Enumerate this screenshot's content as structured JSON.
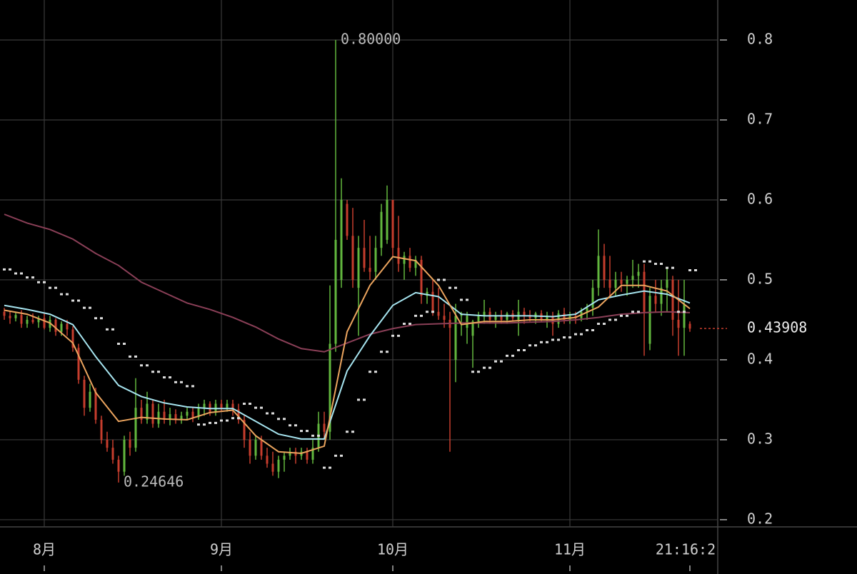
{
  "chart_data": {
    "type": "candlestick",
    "xlim": [
      -7.75,
      117.875
    ],
    "ylim": [
      0.191,
      0.85
    ],
    "yticks": [
      0.2,
      0.3,
      0.4,
      0.5,
      0.6,
      0.7,
      0.8
    ],
    "xticks": [
      {
        "value": 0,
        "label": "8月"
      },
      {
        "value": 31,
        "label": "9月"
      },
      {
        "value": 61,
        "label": "10月"
      },
      {
        "value": 92,
        "label": "11月"
      }
    ],
    "grid": true,
    "up_color": "#62b73e",
    "down_color": "#c63d2d",
    "candles": {
      "x": [
        -7,
        -6,
        -5,
        -4,
        -3,
        -2,
        -1,
        0,
        1,
        2,
        3,
        4,
        5,
        6,
        7,
        8,
        9,
        10,
        11,
        12,
        13,
        14,
        15,
        16,
        17,
        18,
        19,
        20,
        21,
        22,
        23,
        24,
        25,
        26,
        27,
        28,
        29,
        30,
        31,
        32,
        33,
        34,
        35,
        36,
        37,
        38,
        39,
        40,
        41,
        42,
        43,
        44,
        45,
        46,
        47,
        48,
        49,
        50,
        51,
        52,
        53,
        54,
        55,
        56,
        57,
        58,
        59,
        60,
        61,
        62,
        63,
        64,
        65,
        66,
        67,
        68,
        69,
        70,
        71,
        72,
        73,
        74,
        75,
        76,
        77,
        78,
        79,
        80,
        81,
        82,
        83,
        84,
        85,
        86,
        87,
        88,
        89,
        90,
        91,
        92,
        93,
        94,
        95,
        96,
        97,
        98,
        99,
        100,
        101,
        102,
        103,
        104,
        105,
        106,
        107,
        108,
        109,
        110,
        111,
        112,
        113
      ],
      "open": [
        0.46,
        0.455,
        0.452,
        0.456,
        0.445,
        0.45,
        0.447,
        0.452,
        0.44,
        0.45,
        0.435,
        0.445,
        0.438,
        0.415,
        0.375,
        0.34,
        0.36,
        0.325,
        0.3,
        0.29,
        0.275,
        0.26,
        0.3,
        0.29,
        0.34,
        0.325,
        0.345,
        0.32,
        0.335,
        0.325,
        0.332,
        0.325,
        0.33,
        0.335,
        0.328,
        0.34,
        0.345,
        0.335,
        0.345,
        0.34,
        0.345,
        0.338,
        0.325,
        0.3,
        0.28,
        0.3,
        0.28,
        0.27,
        0.26,
        0.275,
        0.28,
        0.285,
        0.28,
        0.285,
        0.275,
        0.29,
        0.32,
        0.31,
        0.42,
        0.5,
        0.595,
        0.555,
        0.49,
        0.54,
        0.515,
        0.51,
        0.54,
        0.55,
        0.6,
        0.54,
        0.52,
        0.53,
        0.515,
        0.525,
        0.48,
        0.485,
        0.46,
        0.455,
        0.45,
        0.4,
        0.455,
        0.44,
        0.43,
        0.448,
        0.455,
        0.46,
        0.45,
        0.455,
        0.45,
        0.458,
        0.45,
        0.46,
        0.455,
        0.452,
        0.458,
        0.45,
        0.455,
        0.445,
        0.458,
        0.45,
        0.455,
        0.452,
        0.46,
        0.465,
        0.49,
        0.53,
        0.5,
        0.49,
        0.5,
        0.495,
        0.5,
        0.505,
        0.51,
        0.42,
        0.48,
        0.47,
        0.49,
        0.5,
        0.45,
        0.44,
        0.445
      ],
      "high": [
        0.465,
        0.46,
        0.46,
        0.462,
        0.455,
        0.458,
        0.455,
        0.458,
        0.455,
        0.452,
        0.448,
        0.45,
        0.442,
        0.42,
        0.38,
        0.37,
        0.365,
        0.33,
        0.31,
        0.3,
        0.28,
        0.305,
        0.31,
        0.377,
        0.35,
        0.36,
        0.35,
        0.345,
        0.35,
        0.34,
        0.338,
        0.335,
        0.34,
        0.34,
        0.345,
        0.35,
        0.348,
        0.35,
        0.35,
        0.35,
        0.35,
        0.345,
        0.33,
        0.31,
        0.305,
        0.305,
        0.29,
        0.285,
        0.28,
        0.285,
        0.29,
        0.29,
        0.29,
        0.29,
        0.3,
        0.335,
        0.335,
        0.493,
        0.8,
        0.627,
        0.6,
        0.59,
        0.555,
        0.575,
        0.555,
        0.555,
        0.595,
        0.618,
        0.6,
        0.58,
        0.535,
        0.54,
        0.53,
        0.53,
        0.49,
        0.5,
        0.49,
        0.47,
        0.46,
        0.47,
        0.46,
        0.46,
        0.45,
        0.46,
        0.475,
        0.465,
        0.46,
        0.462,
        0.46,
        0.462,
        0.475,
        0.465,
        0.462,
        0.46,
        0.462,
        0.46,
        0.46,
        0.462,
        0.465,
        0.46,
        0.46,
        0.465,
        0.47,
        0.5,
        0.563,
        0.545,
        0.53,
        0.51,
        0.51,
        0.505,
        0.525,
        0.52,
        0.52,
        0.49,
        0.5,
        0.5,
        0.515,
        0.505,
        0.5,
        0.5,
        0.448
      ],
      "low": [
        0.45,
        0.445,
        0.448,
        0.44,
        0.44,
        0.445,
        0.44,
        0.438,
        0.435,
        0.43,
        0.43,
        0.43,
        0.41,
        0.37,
        0.33,
        0.335,
        0.32,
        0.295,
        0.285,
        0.27,
        0.24646,
        0.255,
        0.28,
        0.285,
        0.32,
        0.32,
        0.315,
        0.315,
        0.32,
        0.318,
        0.32,
        0.32,
        0.325,
        0.322,
        0.325,
        0.33,
        0.33,
        0.33,
        0.335,
        0.335,
        0.33,
        0.32,
        0.29,
        0.27,
        0.275,
        0.275,
        0.265,
        0.255,
        0.252,
        0.26,
        0.275,
        0.27,
        0.275,
        0.27,
        0.27,
        0.285,
        0.3,
        0.3,
        0.41,
        0.49,
        0.55,
        0.49,
        0.43,
        0.51,
        0.5,
        0.5,
        0.53,
        0.545,
        0.53,
        0.51,
        0.5,
        0.51,
        0.505,
        0.47,
        0.47,
        0.455,
        0.45,
        0.44,
        0.285,
        0.372,
        0.43,
        0.42,
        0.39,
        0.44,
        0.445,
        0.445,
        0.44,
        0.445,
        0.445,
        0.448,
        0.43,
        0.445,
        0.448,
        0.445,
        0.448,
        0.44,
        0.43,
        0.44,
        0.445,
        0.445,
        0.445,
        0.448,
        0.45,
        0.455,
        0.48,
        0.49,
        0.48,
        0.48,
        0.485,
        0.48,
        0.49,
        0.49,
        0.405,
        0.412,
        0.46,
        0.455,
        0.46,
        0.43,
        0.405,
        0.405,
        0.435
      ],
      "close": [
        0.455,
        0.452,
        0.456,
        0.445,
        0.45,
        0.447,
        0.452,
        0.44,
        0.45,
        0.435,
        0.445,
        0.438,
        0.415,
        0.375,
        0.34,
        0.36,
        0.325,
        0.3,
        0.29,
        0.275,
        0.26,
        0.3,
        0.29,
        0.34,
        0.325,
        0.345,
        0.32,
        0.335,
        0.325,
        0.332,
        0.325,
        0.33,
        0.335,
        0.328,
        0.34,
        0.345,
        0.335,
        0.345,
        0.34,
        0.345,
        0.338,
        0.325,
        0.3,
        0.28,
        0.3,
        0.28,
        0.27,
        0.26,
        0.275,
        0.28,
        0.285,
        0.28,
        0.285,
        0.275,
        0.29,
        0.32,
        0.31,
        0.42,
        0.55,
        0.6,
        0.555,
        0.5,
        0.54,
        0.515,
        0.51,
        0.54,
        0.585,
        0.6,
        0.54,
        0.52,
        0.53,
        0.515,
        0.525,
        0.48,
        0.485,
        0.46,
        0.455,
        0.45,
        0.44,
        0.455,
        0.458,
        0.455,
        0.448,
        0.455,
        0.46,
        0.45,
        0.455,
        0.45,
        0.458,
        0.452,
        0.46,
        0.455,
        0.452,
        0.458,
        0.45,
        0.455,
        0.445,
        0.458,
        0.45,
        0.455,
        0.452,
        0.46,
        0.465,
        0.49,
        0.53,
        0.5,
        0.49,
        0.5,
        0.495,
        0.5,
        0.505,
        0.51,
        0.46,
        0.48,
        0.47,
        0.49,
        0.5,
        0.45,
        0.44,
        0.47,
        0.439
      ]
    },
    "lines": [
      {
        "color": "#8a3f57",
        "x": [
          -7,
          -3,
          1,
          5,
          9,
          13,
          17,
          21,
          25,
          29,
          33,
          37,
          41,
          45,
          49,
          53,
          57,
          61,
          65,
          69,
          73,
          77,
          81,
          85,
          89,
          93,
          97,
          101,
          105,
          109,
          113
        ],
        "values": [
          0.582,
          0.571,
          0.563,
          0.551,
          0.533,
          0.518,
          0.497,
          0.484,
          0.471,
          0.463,
          0.453,
          0.441,
          0.426,
          0.414,
          0.41,
          0.421,
          0.432,
          0.439,
          0.444,
          0.445,
          0.446,
          0.446,
          0.446,
          0.447,
          0.448,
          0.45,
          0.453,
          0.457,
          0.459,
          0.46,
          0.459
        ]
      },
      {
        "color": "#a6e4ef",
        "x": [
          -7,
          -3,
          1,
          5,
          9,
          13,
          17,
          21,
          25,
          29,
          33,
          37,
          41,
          45,
          49,
          53,
          57,
          61,
          65,
          69,
          73,
          77,
          81,
          85,
          89,
          93,
          97,
          101,
          105,
          109,
          113
        ],
        "values": [
          0.468,
          0.463,
          0.457,
          0.444,
          0.404,
          0.368,
          0.354,
          0.346,
          0.341,
          0.339,
          0.339,
          0.323,
          0.307,
          0.301,
          0.301,
          0.386,
          0.43,
          0.468,
          0.484,
          0.479,
          0.457,
          0.455,
          0.455,
          0.455,
          0.454,
          0.457,
          0.475,
          0.481,
          0.486,
          0.482,
          0.471
        ]
      },
      {
        "color": "#eba45e",
        "x": [
          -7,
          -3,
          1,
          5,
          9,
          13,
          17,
          21,
          25,
          29,
          33,
          37,
          41,
          45,
          49,
          53,
          57,
          61,
          65,
          69,
          73,
          77,
          81,
          85,
          89,
          93,
          97,
          101,
          105,
          109,
          113
        ],
        "values": [
          0.462,
          0.457,
          0.446,
          0.421,
          0.359,
          0.323,
          0.328,
          0.326,
          0.325,
          0.334,
          0.337,
          0.305,
          0.285,
          0.283,
          0.292,
          0.435,
          0.493,
          0.529,
          0.524,
          0.493,
          0.444,
          0.448,
          0.448,
          0.45,
          0.45,
          0.453,
          0.466,
          0.493,
          0.493,
          0.486,
          0.464
        ]
      }
    ],
    "sar": {
      "color": "#dddddd",
      "x": [
        -7,
        -5,
        -3,
        -1,
        1,
        3,
        5,
        7,
        9,
        11,
        13,
        15,
        17,
        19,
        21,
        23,
        25,
        27,
        29,
        31,
        33,
        35,
        37,
        39,
        41,
        43,
        45,
        47,
        49,
        51,
        53,
        55,
        57,
        59,
        61,
        63,
        65,
        67,
        69,
        71,
        73,
        75,
        77,
        79,
        81,
        83,
        85,
        87,
        89,
        91,
        93,
        95,
        97,
        99,
        101,
        103,
        105,
        107,
        109,
        111,
        113
      ],
      "values": [
        0.513,
        0.508,
        0.503,
        0.497,
        0.49,
        0.482,
        0.474,
        0.465,
        0.452,
        0.438,
        0.42,
        0.404,
        0.393,
        0.385,
        0.378,
        0.372,
        0.367,
        0.319,
        0.321,
        0.324,
        0.327,
        0.345,
        0.34,
        0.333,
        0.326,
        0.318,
        0.311,
        0.305,
        0.265,
        0.28,
        0.31,
        0.35,
        0.385,
        0.41,
        0.43,
        0.445,
        0.455,
        0.46,
        0.5,
        0.49,
        0.475,
        0.385,
        0.39,
        0.398,
        0.405,
        0.412,
        0.418,
        0.422,
        0.425,
        0.428,
        0.432,
        0.437,
        0.445,
        0.45,
        0.455,
        0.46,
        0.523,
        0.52,
        0.515,
        0.46,
        0.512
      ]
    },
    "annotations": [
      {
        "x": 51,
        "value": 0.8,
        "label": "0.80000"
      },
      {
        "x": 13,
        "value": 0.24646,
        "label": "0.24646"
      }
    ],
    "last_price": {
      "value": 0.43908,
      "color": "#c63d2d"
    },
    "crosshair_label": {
      "value": 113,
      "label": "21:16:2"
    }
  }
}
